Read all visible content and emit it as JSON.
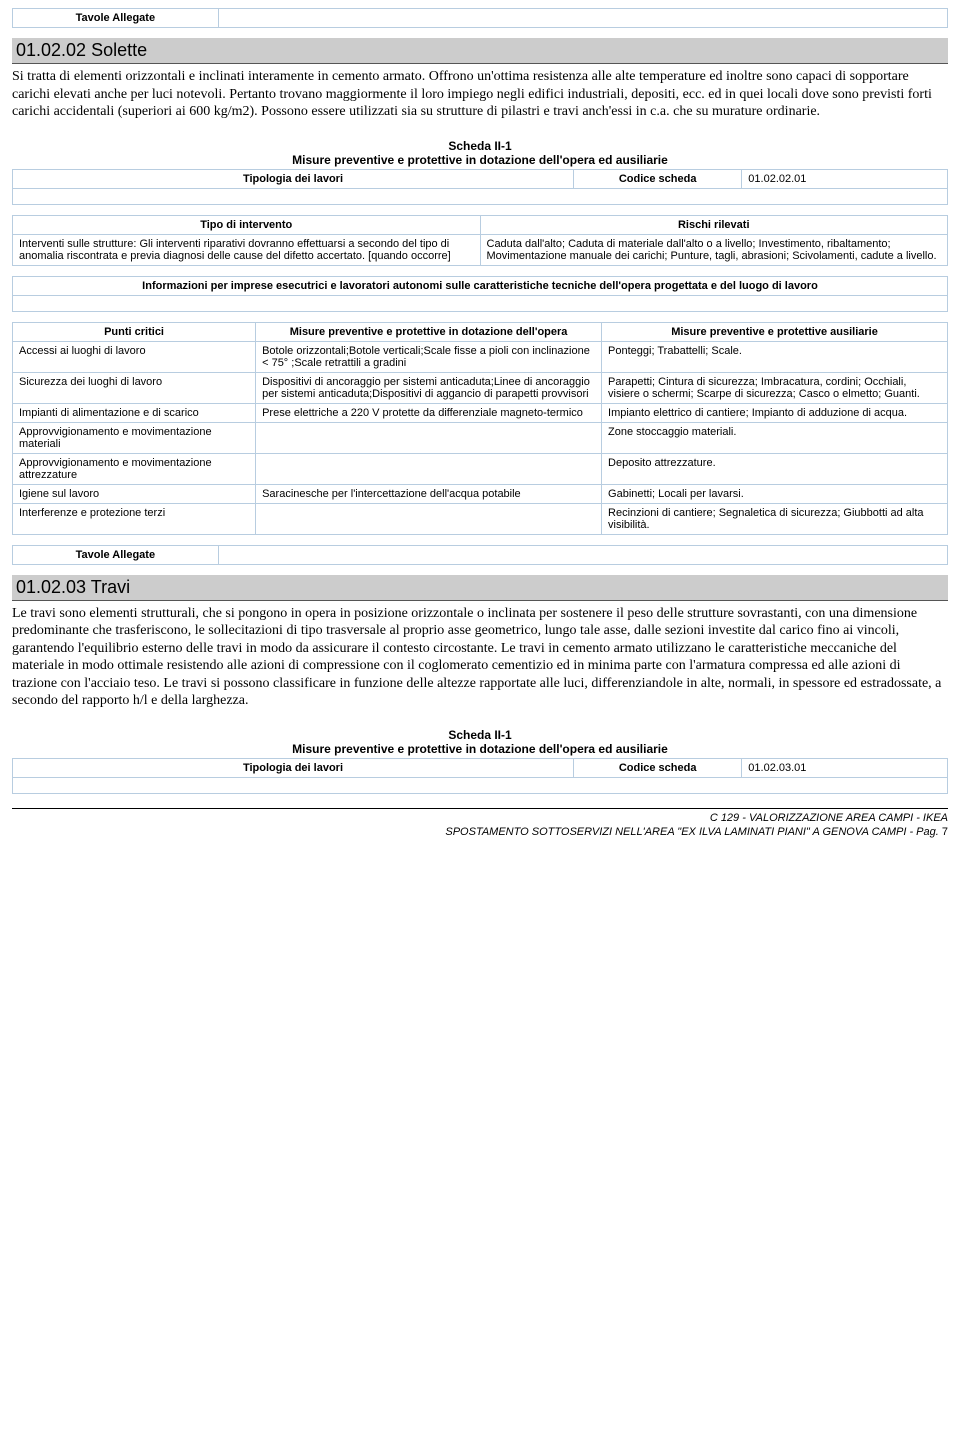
{
  "tavole_allegate_label": "Tavole Allegate",
  "sec1": {
    "heading": "01.02.02 Solette",
    "body": "Si tratta di elementi orizzontali e inclinati interamente in cemento armato. Offrono un'ottima resistenza alle alte temperature ed inoltre sono capaci di sopportare carichi elevati anche per luci notevoli. Pertanto trovano maggiormente il loro impiego negli edifici industriali, depositi, ecc. ed in quei locali dove sono previsti forti carichi accidentali (superiori ai 600 kg/m2). Possono essere utilizzati sia su strutture di pilastri e travi anch'essi in c.a. che su murature ordinarie."
  },
  "scheda": {
    "title": "Scheda II-1",
    "subtitle": "Misure preventive e protettive in dotazione dell'opera ed ausiliarie",
    "tipologia_label": "Tipologia dei lavori",
    "codice_label": "Codice scheda",
    "codice1": "01.02.02.01",
    "codice2": "01.02.03.01"
  },
  "tipo": {
    "col1": "Tipo di intervento",
    "col2": "Rischi rilevati",
    "c1": "Interventi sulle strutture: Gli interventi riparativi dovranno effettuarsi a secondo del tipo di anomalia riscontrata e previa diagnosi delle cause del difetto accertato. [quando occorre]",
    "c2": "Caduta dall'alto; Caduta di materiale dall'alto o a livello; Investimento, ribaltamento; Movimentazione manuale dei carichi; Punture, tagli, abrasioni; Scivolamenti, cadute a livello."
  },
  "info_header": "Informazioni per imprese esecutrici e lavoratori autonomi sulle caratteristiche tecniche dell'opera progettata e del luogo di lavoro",
  "punti": {
    "h1": "Punti critici",
    "h2": "Misure preventive e protettive in dotazione dell'opera",
    "h3": "Misure preventive e protettive ausiliarie",
    "rows": [
      {
        "a": "Accessi ai luoghi di lavoro",
        "b": "Botole orizzontali;Botole verticali;Scale fisse a pioli con inclinazione < 75° ;Scale retrattili a gradini",
        "c": "Ponteggi; Trabattelli; Scale."
      },
      {
        "a": "Sicurezza dei luoghi di lavoro",
        "b": "Dispositivi di ancoraggio per sistemi anticaduta;Linee di ancoraggio per sistemi anticaduta;Dispositivi di aggancio di parapetti provvisori",
        "c": "Parapetti; Cintura di sicurezza; Imbracatura, cordini; Occhiali, visiere o schermi; Scarpe di sicurezza; Casco o elmetto; Guanti."
      },
      {
        "a": "Impianti di alimentazione e di scarico",
        "b": "Prese elettriche a 220 V protette da differenziale magneto-termico",
        "c": "Impianto elettrico di cantiere; Impianto di adduzione di acqua."
      },
      {
        "a": "Approvvigionamento e movimentazione materiali",
        "b": "",
        "c": "Zone stoccaggio materiali."
      },
      {
        "a": "Approvvigionamento e movimentazione attrezzature",
        "b": "",
        "c": "Deposito attrezzature."
      },
      {
        "a": "Igiene sul lavoro",
        "b": "Saracinesche per l'intercettazione dell'acqua potabile",
        "c": "Gabinetti; Locali per lavarsi."
      },
      {
        "a": "Interferenze e protezione terzi",
        "b": "",
        "c": "Recinzioni di cantiere; Segnaletica di sicurezza; Giubbotti ad alta visibilità."
      }
    ]
  },
  "sec2": {
    "heading": "01.02.03 Travi",
    "body": "Le travi sono elementi strutturali, che si pongono in opera in posizione orizzontale o inclinata per sostenere il peso delle strutture sovrastanti, con una dimensione predominante che trasferiscono, le sollecitazioni di tipo trasversale al proprio asse geometrico, lungo tale asse, dalle sezioni investite dal carico fino ai vincoli, garantendo l'equilibrio esterno delle travi in modo da  assicurare il contesto circostante. Le travi in cemento armato utilizzano le caratteristiche meccaniche del materiale in modo ottimale resistendo alle azioni di compressione con il coglomerato cementizio ed in minima parte con l'armatura compressa ed alle azioni di trazione con l'acciaio teso. Le travi si possono classificare in funzione delle altezze rapportate alle luci, differenziandole in alte, normali, in spessore ed estradossate, a secondo del rapporto h/l e della larghezza."
  },
  "footer": {
    "line1": "C 129 - VALORIZZAZIONE AREA CAMPI - IKEA",
    "line2": "SPOSTAMENTO SOTTOSERVIZI NELL'AREA \"EX ILVA LAMINATI PIANI\" A GENOVA CAMPI - Pag. ",
    "page": "7"
  }
}
